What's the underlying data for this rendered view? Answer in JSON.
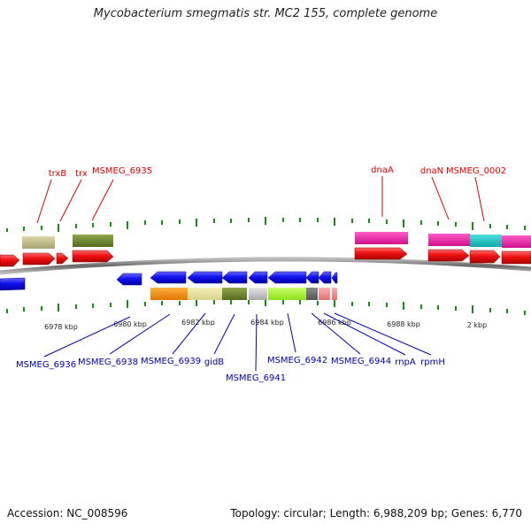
{
  "title": "Mycobacterium smegmatis str. MC2 155, complete genome",
  "footer": {
    "accession": "Accession: NC_008596",
    "summary": "Topology: circular; Length: 6,988,209 bp; Genes: 6,770"
  },
  "colors": {
    "forward_label": "#dd0000",
    "reverse_label": "#0000aa",
    "tick": "#1a8a1a",
    "backbone": "#777777",
    "cds_forward": "#ee1111",
    "cds_reverse": "#1111ee"
  },
  "scale_labels": [
    "6978 kbp",
    "6980 kbp",
    "6982 kbp",
    "6984 kbp",
    "6986 kbp",
    "6988 kbp",
    "2 kbp"
  ],
  "forward_genes": [
    "trxB",
    "trx",
    "MSMEG_6935",
    "dnaA",
    "dnaN",
    "MSMEG_0002"
  ],
  "reverse_genes": [
    "MSMEG_6936",
    "MSMEG_6938",
    "MSMEG_6939",
    "gidB",
    "MSMEG_6941",
    "MSMEG_6942",
    "MSMEG_6944",
    "rnpA",
    "rpmH"
  ]
}
